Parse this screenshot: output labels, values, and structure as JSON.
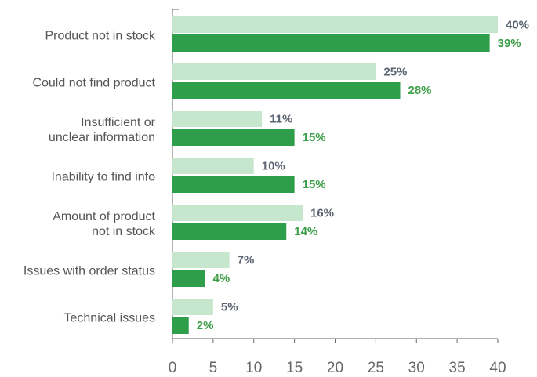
{
  "chart_data": {
    "type": "bar",
    "orientation": "horizontal",
    "categories": [
      "Product not in stock",
      "Could not find product",
      "Insufficient or\nunclear information",
      "Inability to find info",
      "Amount of product\nnot in stock",
      "Issues with order status",
      "Technical issues"
    ],
    "series": [
      {
        "color": "#c6e7cd",
        "label_color": "#5b6470",
        "values": [
          40,
          25,
          11,
          10,
          16,
          7,
          5
        ],
        "value_labels": [
          "40%",
          "25%",
          "11%",
          "10%",
          "16%",
          "7%",
          "5%"
        ]
      },
      {
        "color": "#2f9e4b",
        "label_color": "#3c9e47",
        "values": [
          39,
          28,
          15,
          15,
          14,
          4,
          2
        ],
        "value_labels": [
          "39%",
          "28%",
          "15%",
          "15%",
          "14%",
          "4%",
          "2%"
        ]
      }
    ],
    "xlim": [
      0,
      40
    ],
    "xticks": [
      0,
      5,
      10,
      15,
      20,
      25,
      30,
      35,
      40
    ]
  }
}
